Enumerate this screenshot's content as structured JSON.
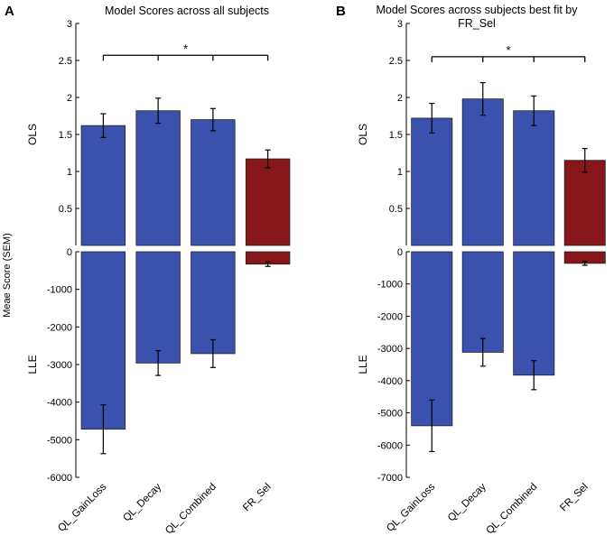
{
  "figure": {
    "shared_ylabel": "Meae Score (SEM)",
    "categories": [
      "QL_GainLoss",
      "QL_Decay",
      "QL_Combined",
      "FR_Sel"
    ],
    "colors": {
      "model": "#3a52ad",
      "highlight": "#87161b"
    }
  },
  "chart_data": [
    {
      "panel_label": "A",
      "title": "Model Scores across all subjects",
      "charts": [
        {
          "type": "bar",
          "ylabel": "OLS",
          "ylim": [
            0,
            3
          ],
          "yticks": [
            0.5,
            1,
            1.5,
            2,
            2.5,
            3
          ],
          "yticklabels": [
            "0.5",
            "1",
            "1.5",
            "2",
            "2.5",
            "3"
          ],
          "categories": [
            "QL_GainLoss",
            "QL_Decay",
            "QL_Combined",
            "FR_Sel"
          ],
          "values": [
            1.62,
            1.82,
            1.7,
            1.17
          ],
          "errors": [
            0.16,
            0.17,
            0.15,
            0.12
          ],
          "significance": {
            "label": "*",
            "value": 2.57
          }
        },
        {
          "type": "bar",
          "ylabel": "LLE",
          "ylim": [
            -6000,
            0
          ],
          "yticks": [
            0,
            -1000,
            -2000,
            -3000,
            -4000,
            -5000,
            -6000
          ],
          "yticklabels": [
            "0",
            "-1000",
            "-2000",
            "-3000",
            "-4000",
            "-5000",
            "-6000"
          ],
          "categories": [
            "QL_GainLoss",
            "QL_Decay",
            "QL_Combined",
            "FR_Sel"
          ],
          "values": [
            -4720,
            -2960,
            -2710,
            -330
          ],
          "errors": [
            650,
            330,
            370,
            60
          ]
        }
      ]
    },
    {
      "panel_label": "B",
      "title": "Model Scores across subjects best fit by",
      "title_line2": "FR_Sel",
      "charts": [
        {
          "type": "bar",
          "ylabel": "OLS",
          "ylim": [
            0,
            3
          ],
          "yticks": [
            0.5,
            1,
            1.5,
            2,
            2.5,
            3
          ],
          "yticklabels": [
            "0.5",
            "1",
            "1.5",
            "2",
            "2.5",
            "3"
          ],
          "categories": [
            "QL_GainLoss",
            "QL_Decay",
            "QL_Combined",
            "FR_Sel"
          ],
          "values": [
            1.72,
            1.98,
            1.82,
            1.15
          ],
          "errors": [
            0.2,
            0.22,
            0.2,
            0.16
          ],
          "significance": {
            "label": "*",
            "value": 2.55
          }
        },
        {
          "type": "bar",
          "ylabel": "LLE",
          "ylim": [
            -7000,
            0
          ],
          "yticks": [
            0,
            -1000,
            -2000,
            -3000,
            -4000,
            -5000,
            -6000,
            -7000
          ],
          "yticklabels": [
            "0",
            "-1000",
            "-2000",
            "-3000",
            "-4000",
            "-5000",
            "-6000",
            "-7000"
          ],
          "categories": [
            "QL_GainLoss",
            "QL_Decay",
            "QL_Combined",
            "FR_Sel"
          ],
          "values": [
            -5400,
            -3120,
            -3830,
            -360
          ],
          "errors": [
            800,
            430,
            450,
            60
          ]
        }
      ]
    }
  ]
}
